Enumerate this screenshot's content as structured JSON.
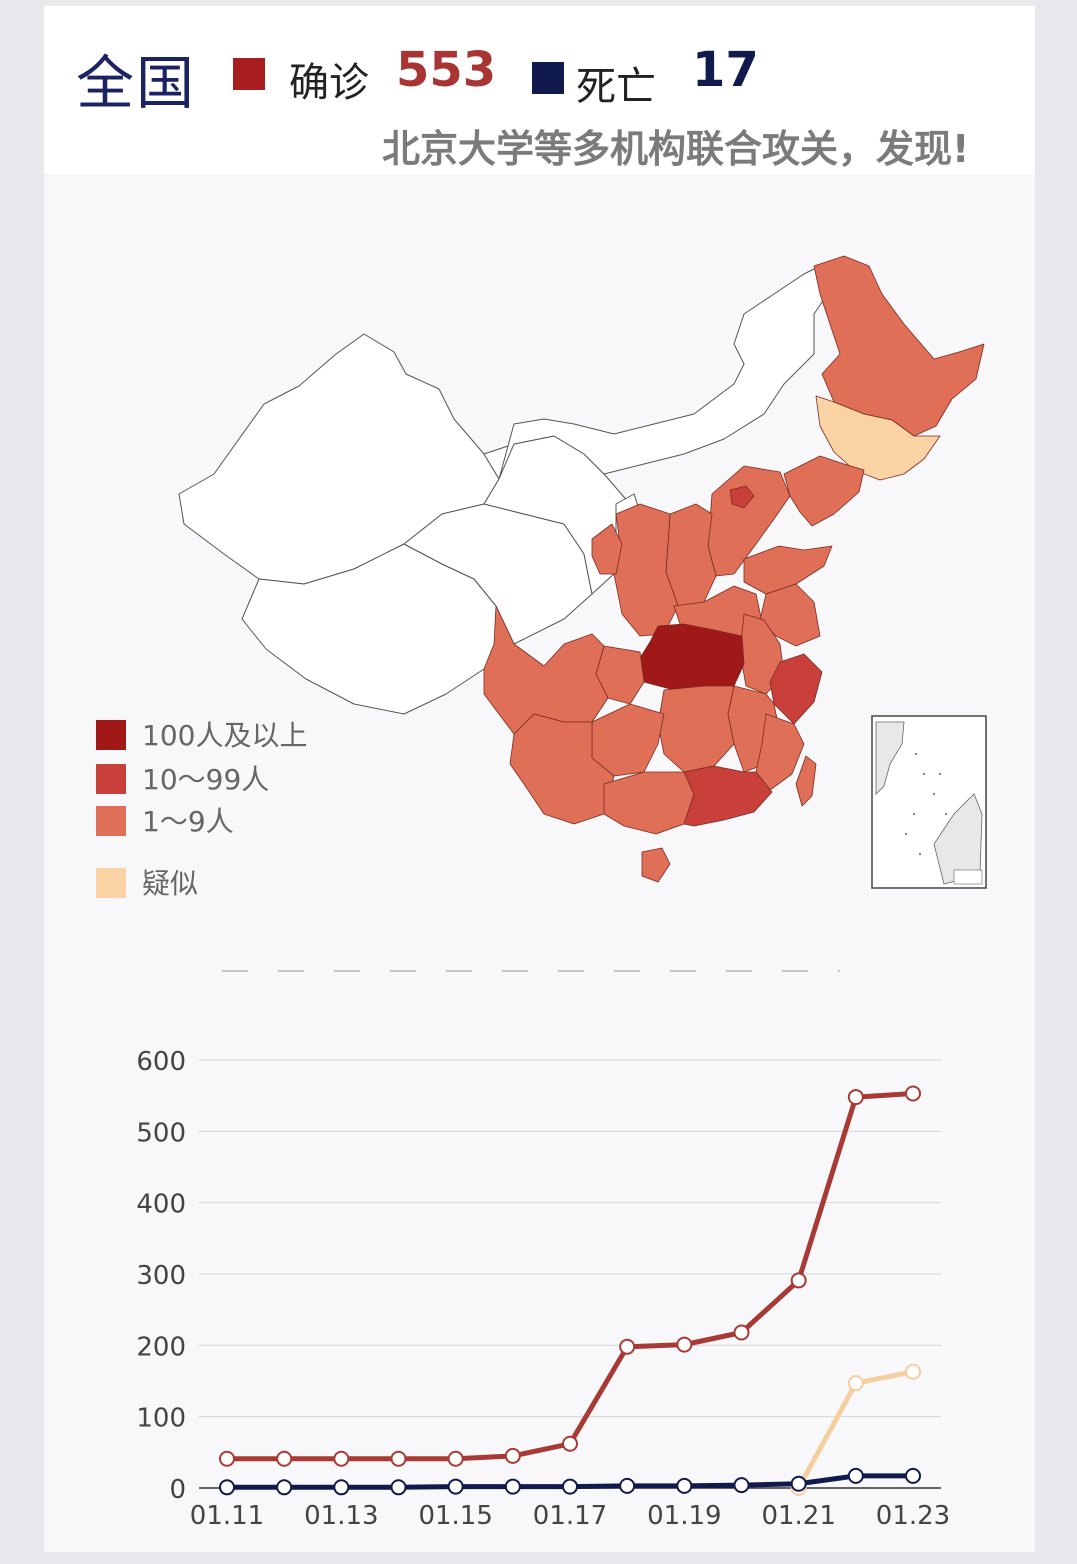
{
  "header": {
    "region": "全国",
    "confirmed_label": "确诊",
    "confirmed_value": "553",
    "deaths_label": "死亡",
    "deaths_value": "17",
    "ticker": "北京大学等多机构联合攻关，发现!"
  },
  "colors": {
    "confirmed": "#a81d1d",
    "confirmed_text": "#a83434",
    "deaths": "#111a4c",
    "suspected": "#f7cf9f",
    "level_high": "#a01818",
    "level_mid": "#c9403a",
    "level_low": "#e06f58",
    "level_suspected": "#fad3a5"
  },
  "map_legend": [
    {
      "label": "100人及以上",
      "color": "#a01818"
    },
    {
      "label": "10～99人",
      "color": "#c9403a"
    },
    {
      "label": "1～9人",
      "color": "#e06f58"
    },
    {
      "label": "疑似",
      "color": "#fad3a5"
    }
  ],
  "chart_data": {
    "type": "line",
    "x": [
      "01.11",
      "01.12",
      "01.13",
      "01.14",
      "01.15",
      "01.16",
      "01.17",
      "01.18",
      "01.19",
      "01.20",
      "01.21",
      "01.22",
      "01.23"
    ],
    "xtick_labels": [
      "01.11",
      "01.13",
      "01.15",
      "01.17",
      "01.19",
      "01.21",
      "01.23"
    ],
    "yticks": [
      0,
      100,
      200,
      300,
      400,
      500,
      600
    ],
    "ylim": [
      0,
      600
    ],
    "grid": true,
    "series": [
      {
        "key": "confirmed",
        "color": "#a83a36",
        "values": [
          41,
          41,
          41,
          41,
          41,
          45,
          62,
          198,
          201,
          218,
          291,
          548,
          553
        ]
      },
      {
        "key": "suspected",
        "color": "#f4cf9f",
        "values": [
          null,
          null,
          null,
          null,
          null,
          null,
          null,
          null,
          null,
          null,
          0,
          147,
          163
        ]
      },
      {
        "key": "deaths",
        "color": "#111a4c",
        "values": [
          1,
          1,
          1,
          1,
          2,
          2,
          2,
          3,
          3,
          4,
          6,
          17,
          17
        ]
      }
    ]
  }
}
